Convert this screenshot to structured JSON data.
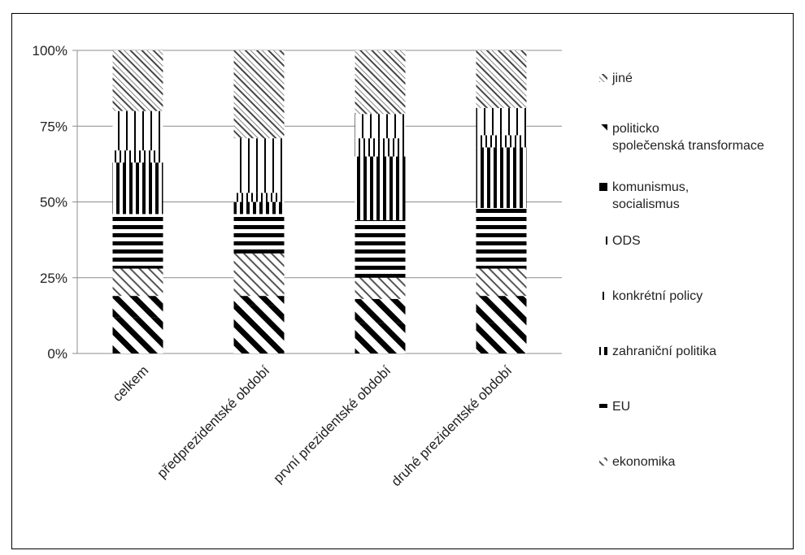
{
  "chart_data": {
    "type": "bar",
    "stacked": true,
    "normalized": true,
    "categories": [
      "celkem",
      "předprezidentské období",
      "první prezidentské období",
      "druhé prezidentské období"
    ],
    "y_ticks": [
      "0%",
      "25%",
      "50%",
      "75%",
      "100%"
    ],
    "ylim": [
      0,
      100
    ],
    "grid": true,
    "legend_position": "right",
    "series": [
      {
        "name": "zahraniční politika",
        "values": [
          12,
          16,
          10,
          10
        ],
        "pattern": "diag-thick"
      },
      {
        "name": "ekonomika",
        "values": [
          7,
          3,
          8,
          9
        ],
        "pattern": "diag-thick"
      },
      {
        "name": "konkrétní policy",
        "values": [
          9,
          14,
          7,
          9
        ],
        "pattern": "diag-thin"
      },
      {
        "name": "EU",
        "values": [
          18,
          13,
          19,
          20
        ],
        "pattern": "horiz"
      },
      {
        "name": "ODS",
        "values": [
          17,
          4,
          21,
          20
        ],
        "pattern": "vert-thick"
      },
      {
        "name": "komunismus, socialismus",
        "values": [
          4,
          3,
          6,
          4
        ],
        "pattern": "vert-thin"
      },
      {
        "name": "politicko společenská transformace",
        "values": [
          13,
          18,
          8,
          9
        ],
        "pattern": "vert-sparse"
      },
      {
        "name": "jiné",
        "values": [
          20,
          29,
          21,
          19
        ],
        "pattern": "mixed-diag"
      }
    ],
    "legend": [
      {
        "label": "jiné",
        "pattern": "mixed-diag"
      },
      {
        "label": "politicko společenská transformace",
        "pattern": "diag-thick"
      },
      {
        "label": "komunismus, socialismus",
        "pattern": "solid-tri"
      },
      {
        "label": "ODS",
        "pattern": "vert-sparse"
      },
      {
        "label": "konkrétní policy",
        "pattern": "vert-thin"
      },
      {
        "label": "zahraniční politika",
        "pattern": "vert-thick"
      },
      {
        "label": "EU",
        "pattern": "horiz"
      },
      {
        "label": "ekonomika",
        "pattern": "diag-thin"
      }
    ]
  }
}
